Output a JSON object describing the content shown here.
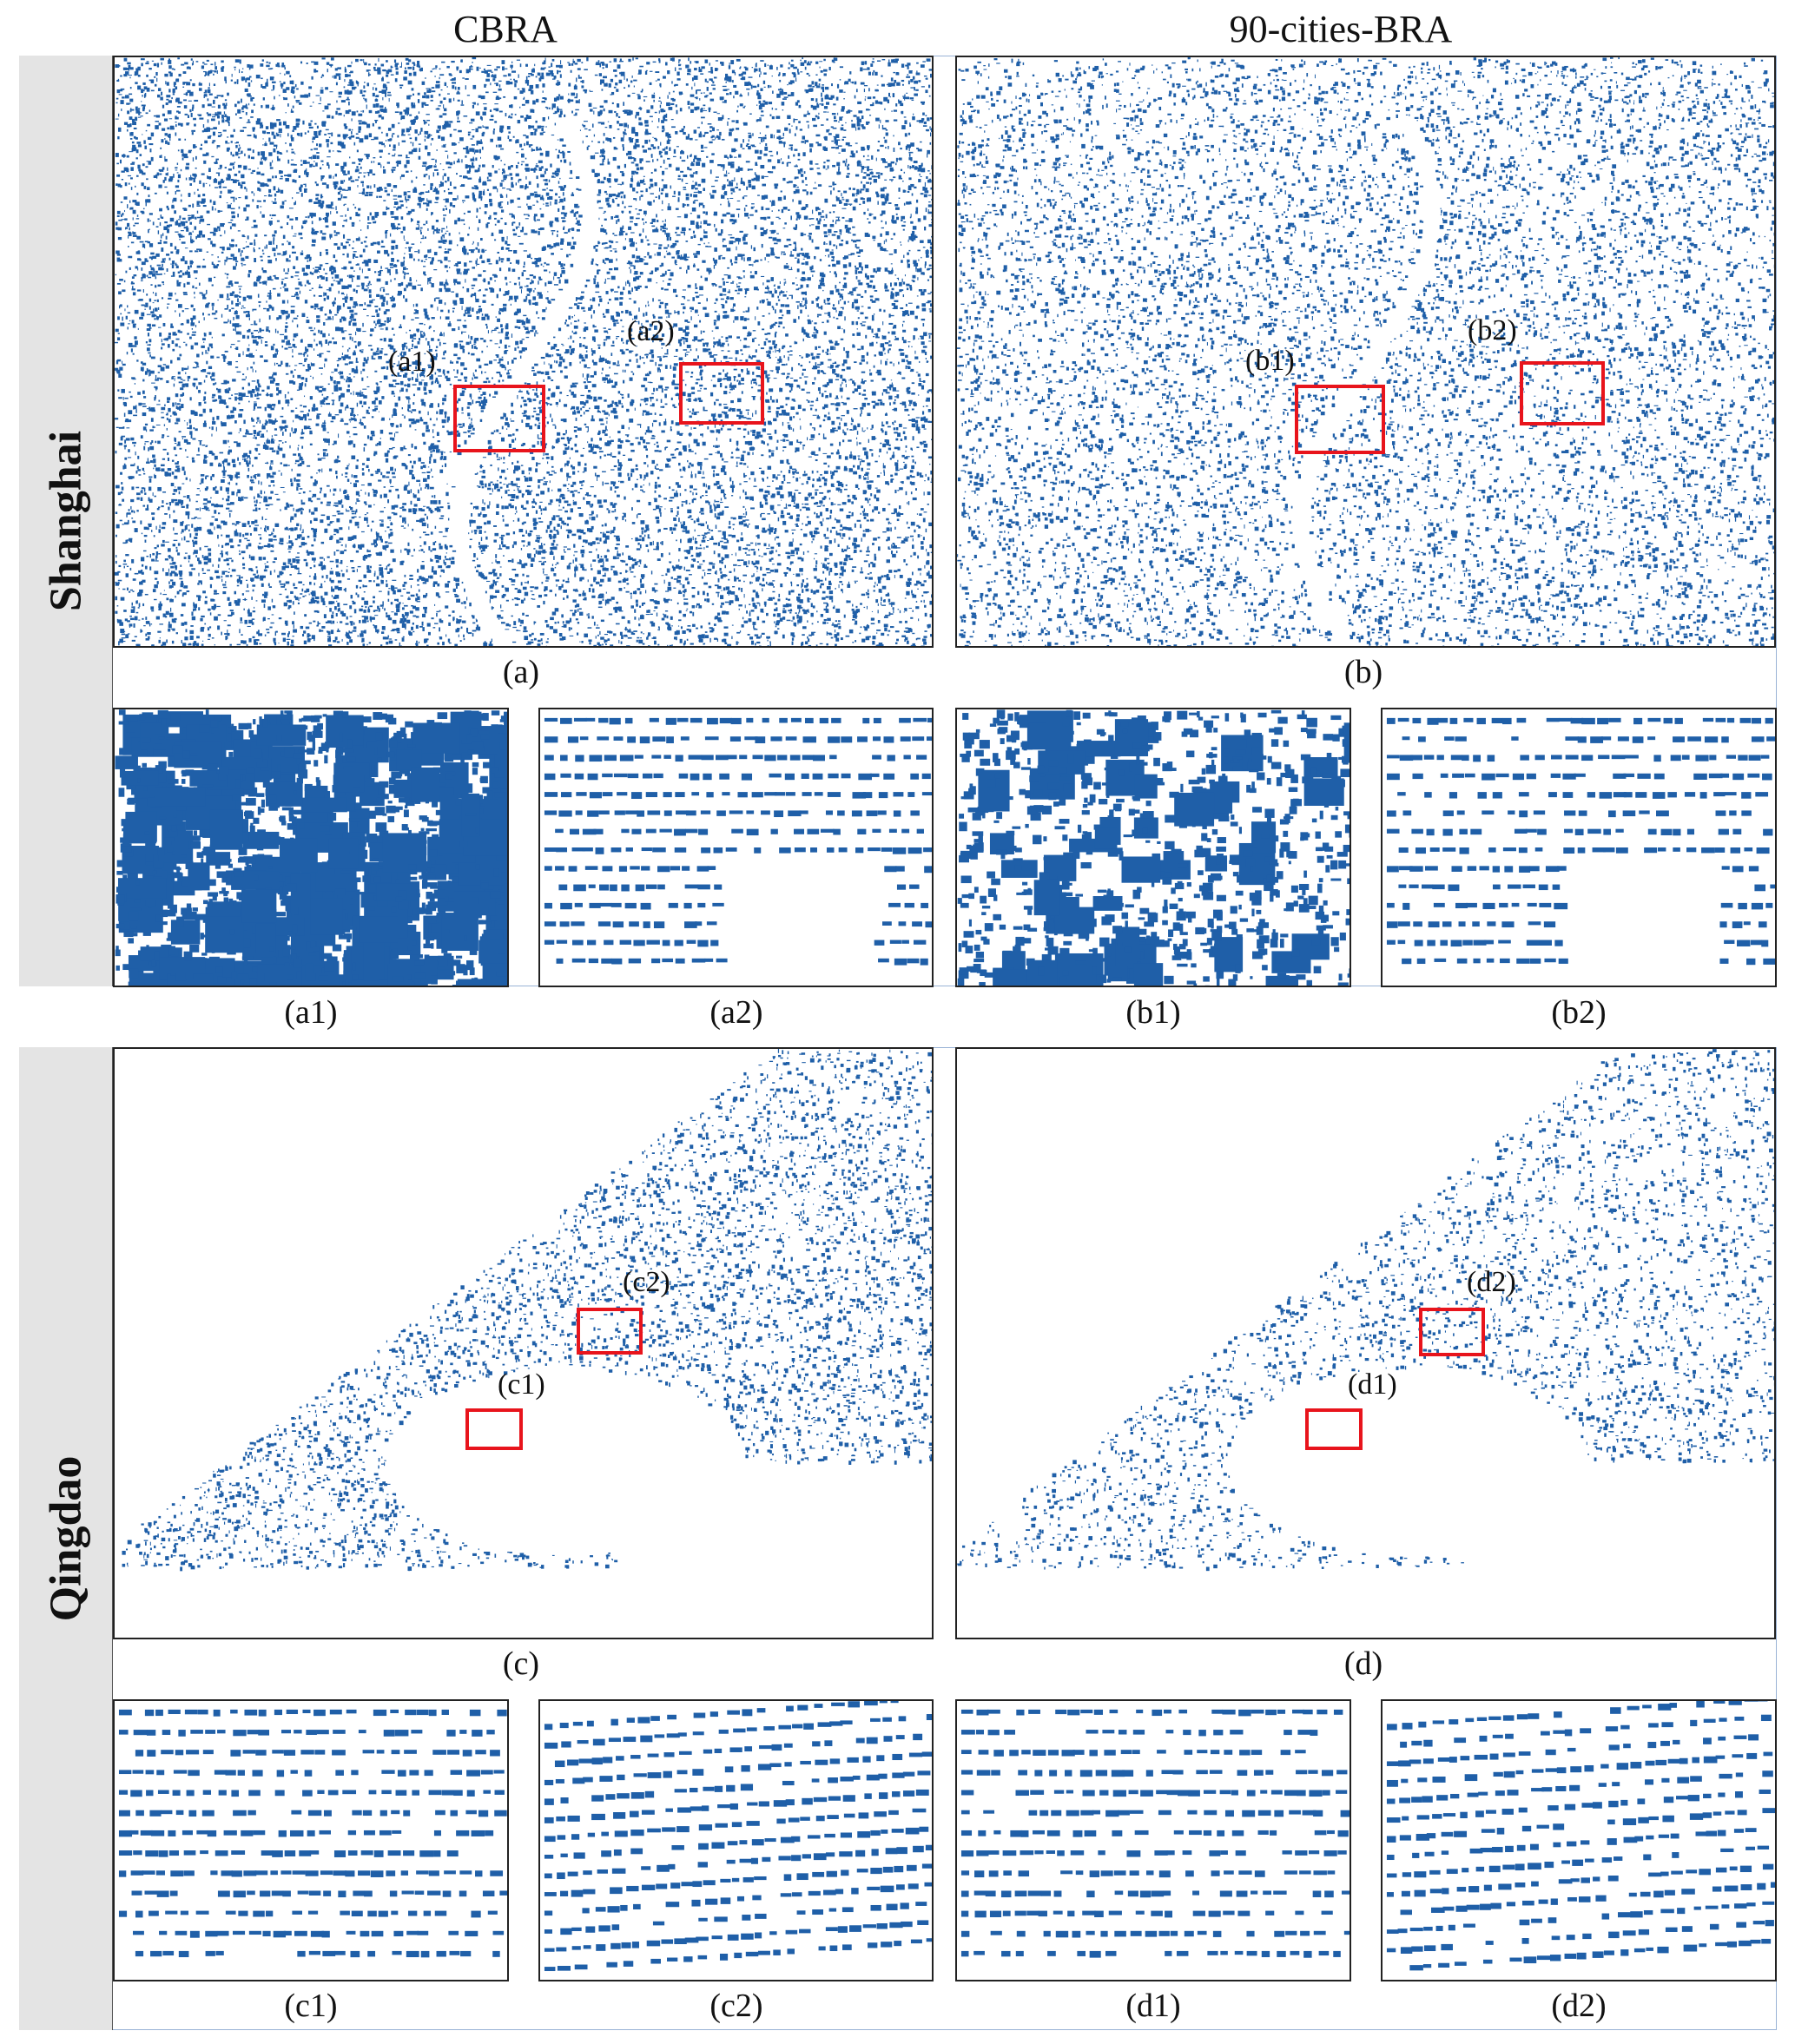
{
  "columns": {
    "left_title": "CBRA",
    "right_title": "90-cities-BRA"
  },
  "rows": {
    "top_label": "Shanghai",
    "bottom_label": "Qingdao"
  },
  "colors": {
    "building": "#1f5fa8",
    "highlight_box": "#e8141c",
    "row_label_bg": "#e4e4e4"
  },
  "panels": {
    "a": {
      "caption": "(a)",
      "box1": "(a1)",
      "box2": "(a2)"
    },
    "b": {
      "caption": "(b)",
      "box1": "(b1)",
      "box2": "(b2)"
    },
    "c": {
      "caption": "(c)",
      "box1": "(c1)",
      "box2": "(c2)"
    },
    "d": {
      "caption": "(d)",
      "box1": "(d1)",
      "box2": "(d2)"
    },
    "a1": {
      "caption": "(a1)"
    },
    "a2": {
      "caption": "(a2)"
    },
    "b1": {
      "caption": "(b1)"
    },
    "b2": {
      "caption": "(b2)"
    },
    "c1": {
      "caption": "(c1)"
    },
    "c2": {
      "caption": "(c2)"
    },
    "d1": {
      "caption": "(d1)"
    },
    "d2": {
      "caption": "(d2)"
    }
  }
}
